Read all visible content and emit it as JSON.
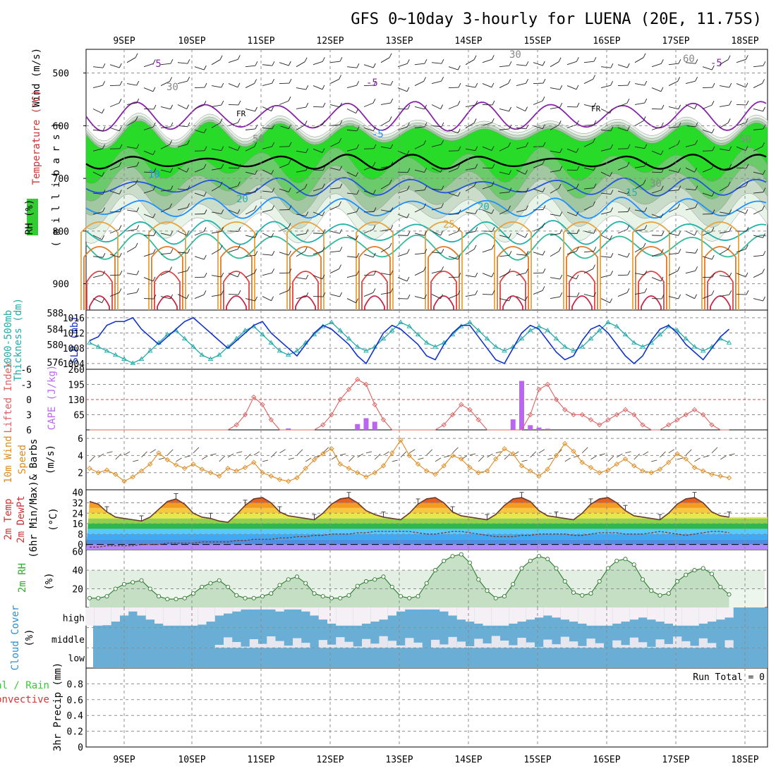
{
  "title": "GFS 0~10day 3-hourly for LUENA (20E, 11.75S)",
  "date_labels": [
    "9SEP",
    "10SEP",
    "11SEP",
    "12SEP",
    "13SEP",
    "14SEP",
    "15SEP",
    "16SEP",
    "17SEP",
    "18SEP"
  ],
  "colors": {
    "rh": "#33cc33",
    "temp": "#cc2222",
    "wind_axis": "#000000",
    "pressure": "#1133cc",
    "thickness": "#22aaaa",
    "lifted": "#e06060",
    "cape": "#bb66ee",
    "wind10": "#e08a1e",
    "rh2m": "#33aa33",
    "cloud": "#6aaed6",
    "precip_total": "#33cc33",
    "precip_conv": "#dd3333"
  },
  "panels": {
    "upper": {
      "label_wind": "Wind (m/s)",
      "label_temp": "Temperature (°C)",
      "label_rh": "RH (%)",
      "label_units": "( m i l l i b a r s )",
      "yticks": [
        "500",
        "600",
        "700",
        "800",
        "900"
      ],
      "contour_labels": [
        "-5",
        "-5",
        "-5",
        "FR",
        "FR",
        "-5",
        "10",
        "15",
        "20",
        "20",
        "25",
        "30",
        "30",
        "30",
        "50",
        "50",
        "60"
      ]
    },
    "slp": {
      "label_thick": "1000-500mb",
      "label_thick2": "Thickness (dm)",
      "label_slp": "SLP (mb)",
      "yticks_left": [
        "588",
        "584",
        "580",
        "576"
      ],
      "yticks_right": [
        "1016",
        "1012",
        "1008",
        "1004"
      ]
    },
    "cape": {
      "label_li": "Lifted Index",
      "label_cape": "CAPE (J/kg)",
      "yticks_left": [
        "-6",
        "-3",
        "0",
        "3",
        "6"
      ],
      "yticks_right": [
        "260",
        "195",
        "130",
        "65"
      ]
    },
    "wind10": {
      "label1": "10m Wind",
      "label2": "Speed",
      "label3": "& Barbs",
      "label4": "(m/s)",
      "yticks": [
        "6",
        "4",
        "2"
      ]
    },
    "temp2m": {
      "label1": "2m Temp",
      "label2": "2m DewPt",
      "label3": "(6hr Min/Max)",
      "label4": "(°C)",
      "yticks": [
        "40",
        "32",
        "24",
        "16",
        "8",
        "0"
      ]
    },
    "rh2m": {
      "label1": "2m RH",
      "label2": "(%)",
      "yticks": [
        "60",
        "40",
        "20"
      ]
    },
    "cloud": {
      "label1": "Cloud Cover",
      "label2": "(%)",
      "levels": [
        "high",
        "middle",
        "low"
      ]
    },
    "precip": {
      "label1": "Total / Rain",
      "label2": "Convective",
      "label3": "3hr Precip (mm)",
      "yticks": [
        "0.8",
        "0.6",
        "0.4",
        "0.2",
        "0"
      ],
      "run_total": "Run Total = 0"
    }
  },
  "chart_data": [
    {
      "type": "line",
      "name": "SLP",
      "ylabel": "SLP (mb)",
      "ylim": [
        1003,
        1018
      ],
      "x_unit": "3-hour steps from 9SEP 00Z (approx)",
      "values": [
        1010,
        1011,
        1014,
        1015,
        1015,
        1016,
        1013,
        1011,
        1009,
        1011,
        1013,
        1015,
        1016,
        1014,
        1012,
        1010,
        1008,
        1010,
        1012,
        1014,
        1015,
        1012,
        1010,
        1008,
        1006,
        1009,
        1012,
        1014,
        1013,
        1011,
        1009,
        1006,
        1004,
        1008,
        1012,
        1014,
        1013,
        1011,
        1009,
        1006,
        1005,
        1009,
        1012,
        1014,
        1014,
        1011,
        1008,
        1005,
        1004,
        1008,
        1012,
        1014,
        1013,
        1010,
        1007,
        1005,
        1006,
        1010,
        1013,
        1014,
        1012,
        1009,
        1006,
        1004,
        1006,
        1010,
        1013,
        1014,
        1012,
        1009,
        1007,
        1005,
        1008,
        1011,
        1013
      ]
    },
    {
      "type": "line",
      "name": "1000-500mb Thickness",
      "ylabel": "Thickness (dm)",
      "ylim": [
        575,
        589
      ],
      "values": [
        581,
        580,
        579,
        578,
        577,
        576,
        577,
        579,
        581,
        583,
        584,
        582,
        580,
        578,
        577,
        578,
        580,
        582,
        584,
        585,
        583,
        581,
        579,
        578,
        579,
        581,
        583,
        585,
        586,
        584,
        582,
        580,
        579,
        580,
        582,
        584,
        586,
        585,
        583,
        581,
        580,
        581,
        583,
        585,
        586,
        584,
        582,
        580,
        579,
        580,
        582,
        584,
        585,
        584,
        582,
        580,
        579,
        580,
        582,
        584,
        586,
        585,
        583,
        581,
        580,
        581,
        583,
        585,
        584,
        582,
        580,
        579,
        580,
        582,
        581
      ]
    },
    {
      "type": "bar",
      "name": "CAPE",
      "ylabel": "CAPE (J/kg)",
      "ylim": [
        0,
        260
      ],
      "values": [
        0,
        0,
        0,
        0,
        0,
        0,
        0,
        0,
        0,
        0,
        0,
        0,
        0,
        0,
        0,
        0,
        0,
        0,
        0,
        0,
        0,
        0,
        0,
        6,
        0,
        0,
        0,
        0,
        0,
        0,
        0,
        25,
        50,
        35,
        0,
        0,
        0,
        0,
        0,
        0,
        0,
        0,
        0,
        0,
        0,
        0,
        0,
        0,
        0,
        45,
        210,
        20,
        10,
        5,
        0,
        0,
        0,
        0,
        0,
        0,
        0,
        0,
        0,
        0,
        0,
        0,
        0,
        0,
        0,
        0,
        0,
        0,
        0,
        0,
        0
      ]
    },
    {
      "type": "line",
      "name": "Lifted Index",
      "ylabel": "Lifted Index",
      "ylim": [
        6,
        -6
      ],
      "values": [
        6,
        6,
        6,
        6,
        6,
        6,
        6,
        6,
        6,
        6,
        6,
        6,
        6,
        6,
        6,
        6,
        6,
        5,
        3,
        -0.5,
        1,
        4,
        6,
        6,
        6,
        6,
        6,
        5,
        3,
        0,
        -2,
        -4,
        -3,
        1,
        4,
        6,
        6,
        6,
        6,
        6,
        6,
        5,
        3,
        1,
        2,
        4,
        6,
        6,
        6,
        6,
        6,
        3,
        -2,
        -3,
        0,
        2,
        3,
        3,
        4,
        5,
        4,
        3,
        2,
        3,
        5,
        6,
        6,
        5,
        4,
        3,
        2,
        3,
        5,
        6,
        6
      ]
    },
    {
      "type": "line",
      "name": "10m Wind Speed",
      "ylabel": "(m/s)",
      "ylim": [
        0,
        7
      ],
      "values": [
        2.5,
        2.0,
        2.3,
        1.8,
        1.0,
        1.5,
        2.2,
        3.0,
        4.3,
        3.5,
        2.9,
        2.5,
        3.0,
        2.4,
        2.0,
        1.6,
        2.5,
        2.2,
        2.6,
        3.2,
        2.0,
        1.6,
        1.2,
        1.0,
        1.4,
        2.5,
        3.5,
        4.2,
        4.8,
        3.0,
        2.5,
        2.0,
        1.5,
        2.0,
        2.8,
        4.3,
        5.8,
        4.0,
        3.0,
        2.2,
        1.8,
        2.8,
        4.0,
        3.6,
        2.6,
        2.0,
        2.2,
        3.6,
        4.8,
        4.2,
        2.8,
        2.2,
        1.6,
        2.4,
        4.0,
        5.4,
        4.5,
        3.2,
        2.6,
        2.0,
        2.3,
        3.0,
        3.6,
        2.8,
        2.2,
        2.0,
        2.4,
        3.2,
        4.2,
        3.6,
        2.6,
        2.2,
        1.8,
        1.6,
        1.4
      ]
    },
    {
      "type": "area",
      "name": "2m Temp",
      "ylabel": "(°C)",
      "ylim": [
        -4,
        42
      ],
      "values": [
        33,
        31,
        25,
        21,
        20,
        19,
        18,
        21,
        27,
        33,
        35,
        31,
        24,
        21,
        20,
        18,
        17,
        23,
        30,
        35,
        36,
        32,
        25,
        22,
        21,
        20,
        19,
        24,
        31,
        35,
        36,
        32,
        26,
        23,
        21,
        20,
        19,
        24,
        31,
        35,
        36,
        32,
        25,
        22,
        21,
        20,
        19,
        23,
        30,
        35,
        36,
        33,
        26,
        22,
        21,
        20,
        19,
        24,
        31,
        35,
        36,
        32,
        26,
        22,
        21,
        20,
        19,
        24,
        31,
        35,
        36,
        32,
        25,
        22,
        21
      ]
    },
    {
      "type": "line",
      "name": "2m DewPt",
      "ylabel": "(°C)",
      "ylim": [
        -4,
        42
      ],
      "values": [
        -2,
        -2,
        -1,
        -1,
        -1,
        -1,
        0,
        0,
        0,
        1,
        1,
        1,
        1,
        2,
        2,
        2,
        2,
        3,
        3,
        4,
        4,
        4,
        5,
        5,
        6,
        6,
        7,
        7,
        8,
        8,
        8,
        9,
        9,
        10,
        10,
        10,
        10,
        10,
        9,
        8,
        8,
        9,
        10,
        10,
        9,
        8,
        7,
        6,
        6,
        6,
        7,
        7,
        8,
        8,
        8,
        8,
        7,
        7,
        8,
        9,
        9,
        9,
        8,
        8,
        8,
        9,
        10,
        9,
        8,
        7,
        8,
        9,
        10,
        10,
        9
      ]
    },
    {
      "type": "area",
      "name": "2m RH",
      "ylabel": "(%)",
      "ylim": [
        0,
        62
      ],
      "values": [
        10,
        10,
        12,
        20,
        25,
        27,
        29,
        20,
        12,
        9,
        9,
        10,
        15,
        22,
        26,
        29,
        22,
        13,
        10,
        10,
        12,
        15,
        24,
        30,
        33,
        26,
        15,
        12,
        10,
        10,
        13,
        23,
        28,
        30,
        33,
        22,
        12,
        10,
        12,
        26,
        40,
        50,
        55,
        57,
        48,
        30,
        18,
        10,
        12,
        25,
        42,
        50,
        55,
        52,
        42,
        28,
        16,
        13,
        15,
        28,
        42,
        50,
        52,
        46,
        30,
        18,
        13,
        15,
        28,
        35,
        40,
        42,
        36,
        22,
        14
      ]
    },
    {
      "type": "bar",
      "name": "Cloud Cover (high)",
      "ylabel": "(%)",
      "ylim": [
        0,
        100
      ],
      "values": [
        10,
        10,
        12,
        30,
        60,
        80,
        60,
        40,
        20,
        10,
        10,
        10,
        10,
        15,
        30,
        60,
        70,
        80,
        90,
        90,
        90,
        90,
        80,
        90,
        90,
        80,
        60,
        40,
        20,
        10,
        10,
        10,
        20,
        30,
        40,
        60,
        80,
        90,
        90,
        90,
        90,
        80,
        60,
        40,
        30,
        20,
        10,
        10,
        10,
        20,
        30,
        40,
        50,
        60,
        50,
        40,
        30,
        20,
        10,
        10,
        10,
        20,
        30,
        40,
        50,
        40,
        30,
        20,
        10,
        10,
        10,
        20,
        30,
        40,
        50
      ]
    },
    {
      "type": "bar",
      "name": "3hr Precip",
      "ylabel": "3hr Precip (mm)",
      "ylim": [
        0,
        1
      ],
      "values": [
        0,
        0,
        0,
        0,
        0,
        0,
        0,
        0,
        0,
        0,
        0,
        0,
        0,
        0,
        0,
        0,
        0,
        0,
        0,
        0,
        0,
        0,
        0,
        0,
        0,
        0,
        0,
        0,
        0,
        0,
        0,
        0,
        0,
        0,
        0,
        0,
        0,
        0,
        0,
        0,
        0,
        0,
        0,
        0,
        0,
        0,
        0,
        0,
        0,
        0,
        0,
        0,
        0,
        0,
        0,
        0,
        0,
        0,
        0,
        0,
        0,
        0,
        0,
        0,
        0,
        0,
        0,
        0,
        0,
        0,
        0,
        0,
        0,
        0,
        0
      ]
    }
  ]
}
